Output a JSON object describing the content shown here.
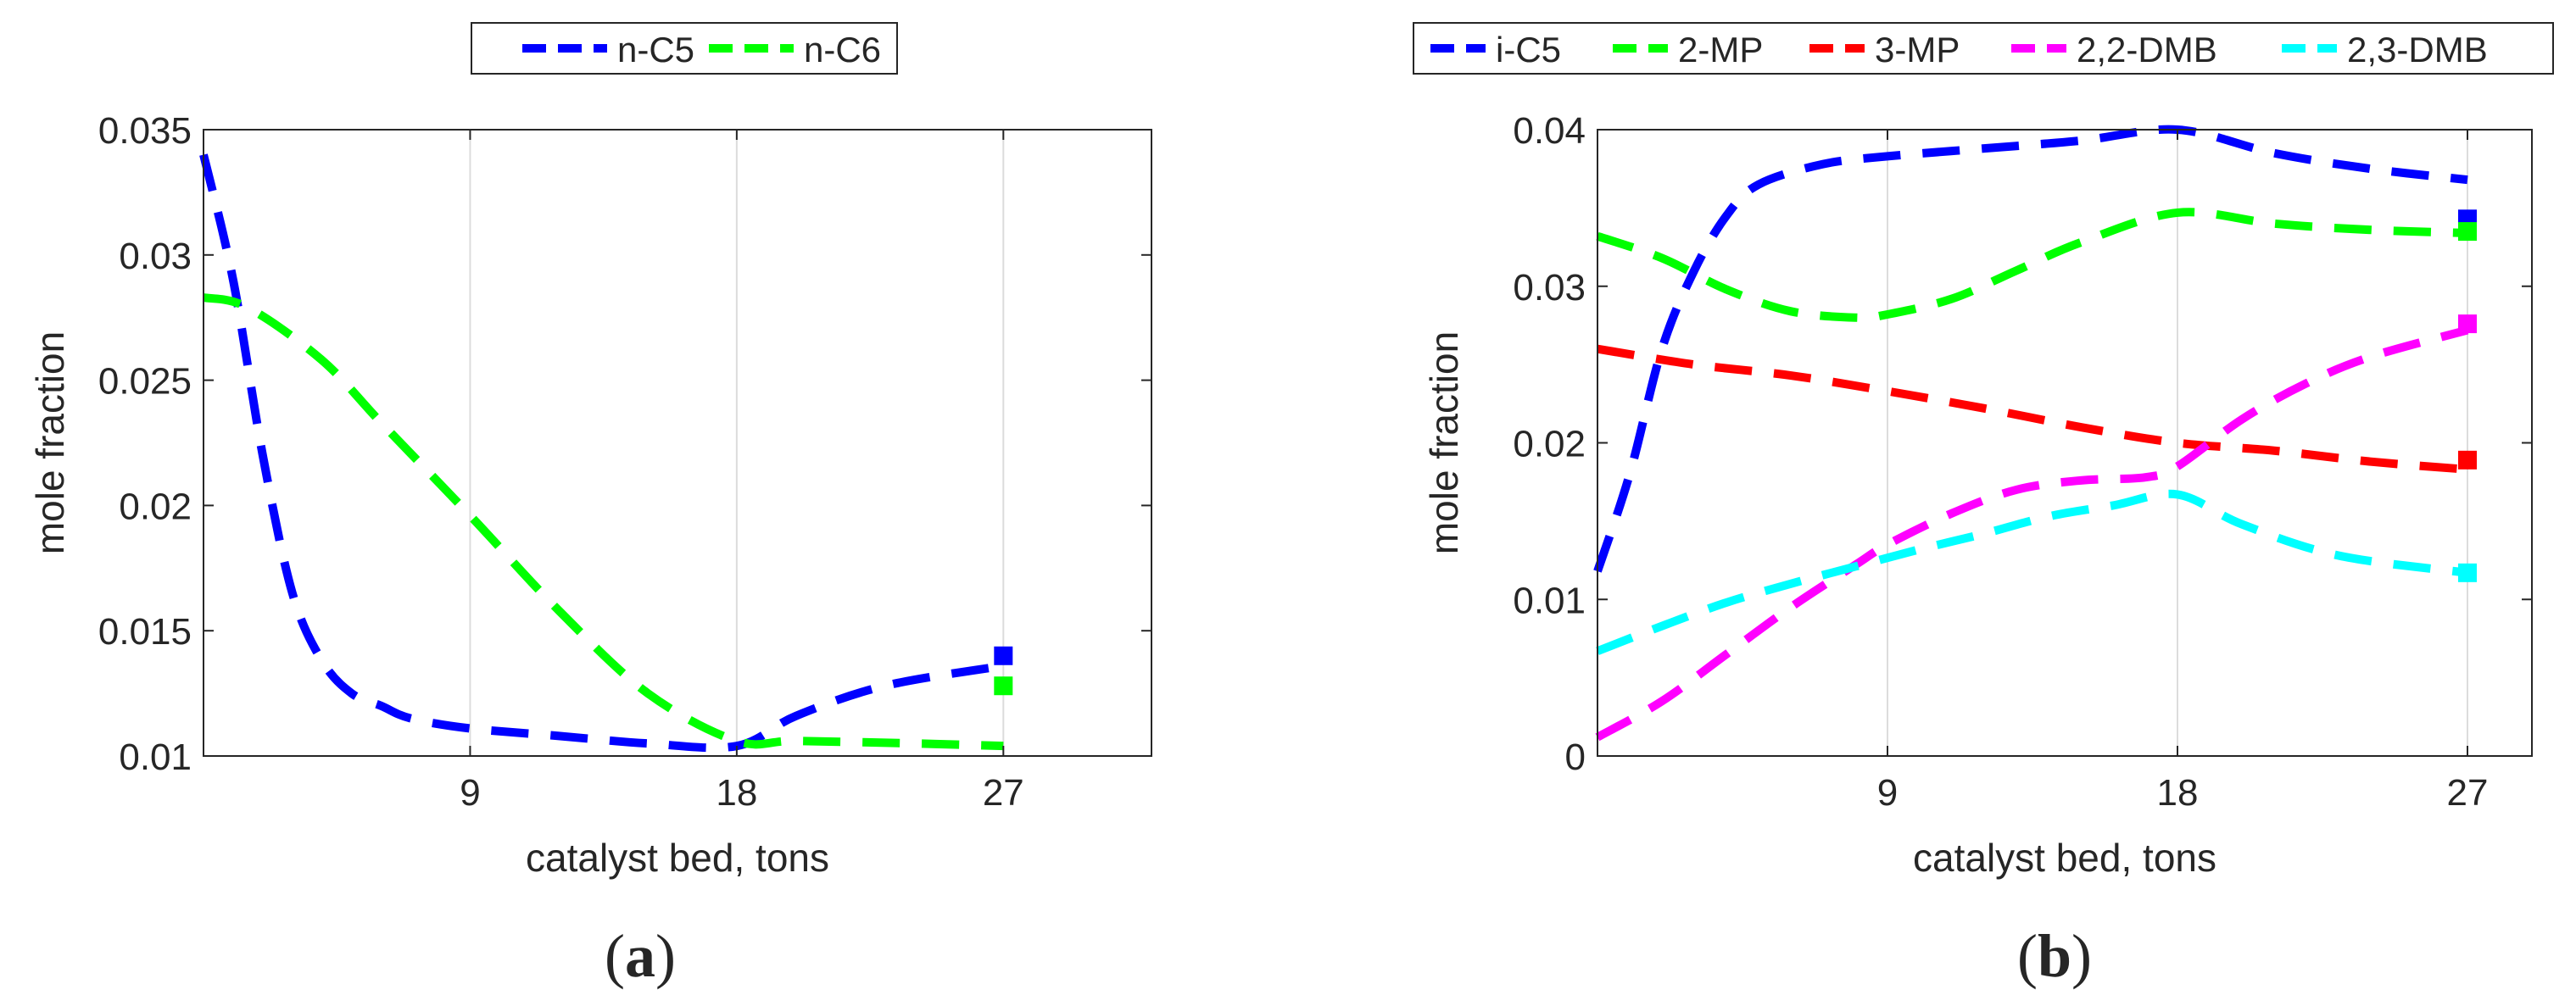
{
  "chart_data": [
    {
      "type": "line",
      "label": "(a)",
      "xlabel": "catalyst bed, tons",
      "ylabel": "mole fraction",
      "xlim": [
        0,
        32
      ],
      "ylim": [
        0.01,
        0.035
      ],
      "xticks": [
        9,
        18,
        27
      ],
      "xtick_labels": [
        "9",
        "18",
        "27"
      ],
      "yticks": [
        0.01,
        0.015,
        0.02,
        0.025,
        0.03,
        0.035
      ],
      "ytick_labels": [
        "0.01",
        "0.015",
        "0.02",
        "0.025",
        "0.03",
        "0.035"
      ],
      "grid": "vertical at x ticks",
      "legend_position": "top-center outside",
      "series": [
        {
          "name": "n-C5",
          "color": "#0000ff",
          "x": [
            0,
            1,
            2,
            3,
            4,
            5,
            6,
            7,
            9,
            12,
            15,
            18,
            20,
            23,
            27
          ],
          "y": [
            0.034,
            0.029,
            0.022,
            0.0165,
            0.0138,
            0.0125,
            0.012,
            0.0115,
            0.0111,
            0.0108,
            0.0105,
            0.0104,
            0.0116,
            0.0128,
            0.0136
          ],
          "end_marker": 0.014
        },
        {
          "name": "n-C6",
          "color": "#00ff00",
          "x": [
            0,
            1.5,
            4,
            6,
            9,
            12,
            15,
            18,
            20,
            24,
            27
          ],
          "y": [
            0.0283,
            0.0279,
            0.0258,
            0.0233,
            0.0196,
            0.0158,
            0.0125,
            0.0106,
            0.0106,
            0.0105,
            0.0104
          ],
          "end_marker": 0.0128
        }
      ]
    },
    {
      "type": "line",
      "label": "(b)",
      "xlabel": "catalyst bed, tons",
      "ylabel": "mole fraction",
      "xlim": [
        0,
        29
      ],
      "ylim": [
        0,
        0.04
      ],
      "xticks": [
        9,
        18,
        27
      ],
      "xtick_labels": [
        "9",
        "18",
        "27"
      ],
      "yticks": [
        0,
        0.01,
        0.02,
        0.03,
        0.04
      ],
      "ytick_labels": [
        "0",
        "0.01",
        "0.02",
        "0.03",
        "0.04"
      ],
      "grid": "vertical at x ticks",
      "legend_position": "top outside",
      "series": [
        {
          "name": "i-C5",
          "color": "#0000ff",
          "x": [
            0,
            1,
            2,
            3,
            4,
            5,
            7,
            9,
            12,
            15,
            18,
            21,
            24,
            27
          ],
          "y": [
            0.0118,
            0.018,
            0.026,
            0.031,
            0.0345,
            0.0365,
            0.0378,
            0.0383,
            0.0388,
            0.0393,
            0.04,
            0.0385,
            0.0375,
            0.0368
          ],
          "end_marker": 0.0343
        },
        {
          "name": "2-MP",
          "color": "#00ff00",
          "x": [
            0,
            2,
            4,
            6,
            8,
            9,
            11,
            13,
            15,
            18,
            21,
            24,
            27
          ],
          "y": [
            0.0332,
            0.0318,
            0.0298,
            0.0284,
            0.028,
            0.0282,
            0.0292,
            0.031,
            0.0328,
            0.0347,
            0.034,
            0.0336,
            0.0334
          ],
          "end_marker": 0.0335
        },
        {
          "name": "3-MP",
          "color": "#ff0000",
          "x": [
            0,
            3,
            6,
            9,
            12,
            15,
            18,
            21,
            24,
            27
          ],
          "y": [
            0.026,
            0.025,
            0.0243,
            0.0233,
            0.0222,
            0.021,
            0.02,
            0.0195,
            0.0188,
            0.0183
          ],
          "end_marker": 0.0189
        },
        {
          "name": "2,2-DMB",
          "color": "#ff00ff",
          "x": [
            0,
            2,
            4,
            6,
            8,
            9,
            11,
            13,
            15,
            17,
            18,
            20,
            22,
            24,
            27
          ],
          "y": [
            0.0012,
            0.0035,
            0.0065,
            0.0095,
            0.0122,
            0.0135,
            0.0155,
            0.017,
            0.0176,
            0.0178,
            0.0185,
            0.0215,
            0.0238,
            0.0255,
            0.0272
          ],
          "end_marker": 0.0276
        },
        {
          "name": "2,3-DMB",
          "color": "#00ffff",
          "x": [
            0,
            2,
            4,
            6,
            8,
            10,
            12,
            14,
            16,
            18,
            20,
            23,
            27
          ],
          "y": [
            0.0067,
            0.0083,
            0.0098,
            0.011,
            0.0121,
            0.0132,
            0.0142,
            0.0153,
            0.016,
            0.0167,
            0.0148,
            0.0128,
            0.0117
          ],
          "end_marker": 0.0117
        }
      ]
    }
  ]
}
